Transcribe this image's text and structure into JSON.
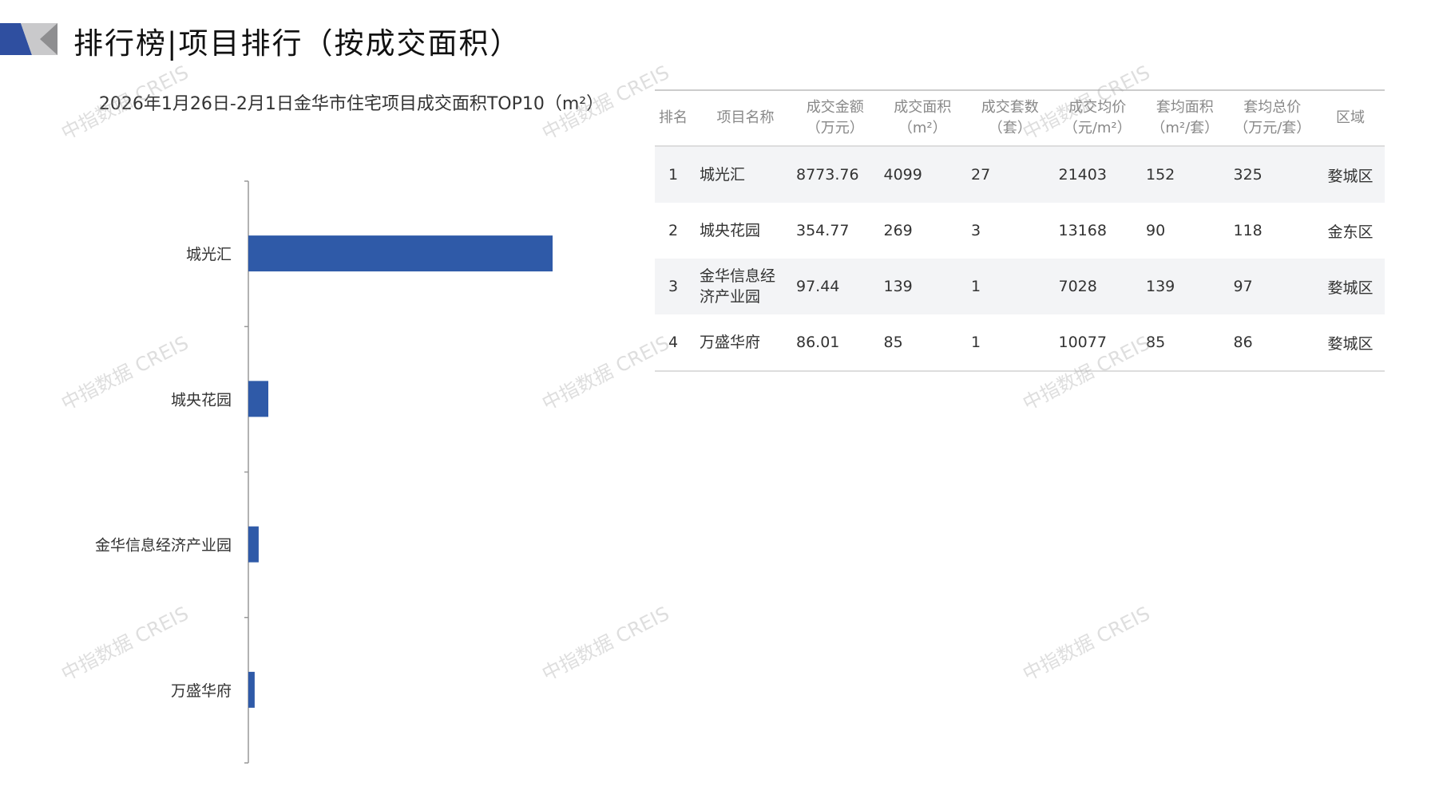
{
  "header": {
    "title": "排行榜|项目排行（按成交面积）"
  },
  "watermark": "中指数据 CREIS",
  "colors": {
    "bar": "#2f5aa8",
    "logo_blue": "#2f4fa0",
    "logo_gray": "#a9a9ab"
  },
  "chart_data": {
    "type": "bar",
    "orientation": "horizontal",
    "title": "2026年1月26日-2月1日金华市住宅项目成交面积TOP10（m²）",
    "categories": [
      "城光汇",
      "城央花园",
      "金华信息经济产业园",
      "万盛华府"
    ],
    "values": [
      4099,
      269,
      139,
      85
    ],
    "grid": false
  },
  "table": {
    "headers": [
      [
        "排名"
      ],
      [
        "项目名称"
      ],
      [
        "成交金额",
        "（万元）"
      ],
      [
        "成交面积",
        "（m²）"
      ],
      [
        "成交套数",
        "（套）"
      ],
      [
        "成交均价",
        "（元/m²）"
      ],
      [
        "套均面积",
        "（m²/套）"
      ],
      [
        "套均总价",
        "（万元/套）"
      ],
      [
        "区域"
      ]
    ],
    "rows": [
      [
        "1",
        "城光汇",
        "8773.76",
        "4099",
        "27",
        "21403",
        "152",
        "325",
        "婺城区"
      ],
      [
        "2",
        "城央花园",
        "354.77",
        "269",
        "3",
        "13168",
        "90",
        "118",
        "金东区"
      ],
      [
        "3",
        "金华信息经济产业园",
        "97.44",
        "139",
        "1",
        "7028",
        "139",
        "97",
        "婺城区"
      ],
      [
        "4",
        "万盛华府",
        "86.01",
        "85",
        "1",
        "10077",
        "85",
        "86",
        "婺城区"
      ]
    ]
  }
}
